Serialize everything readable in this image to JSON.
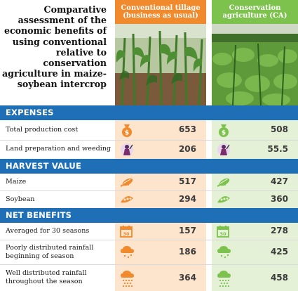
{
  "title": "Comparative assessment of the economic benefits of using conventional relative to conservation agriculture in maize-soybean intercrop",
  "columns": {
    "conventional": {
      "label": "Conventional tillage (business as usual)",
      "color": "#f08a2c"
    },
    "conservation": {
      "label": "Conservation agriculture (CA)",
      "color": "#7cc24c"
    }
  },
  "sections": {
    "expenses": {
      "title": "EXPENSES",
      "rows": [
        {
          "label": "Total production cost",
          "icon": "money-bag-icon",
          "conventional": "653",
          "conservation": "508"
        },
        {
          "label": "Land preparation and weeding",
          "icon": "farmer-icon",
          "conventional": "206",
          "conservation": "55.5"
        }
      ]
    },
    "harvest": {
      "title": "HARVEST VALUE",
      "rows": [
        {
          "label": "Maize",
          "icon": "maize-cob-icon",
          "conventional": "517",
          "conservation": "427"
        },
        {
          "label": "Soybean",
          "icon": "soybean-pod-icon",
          "conventional": "294",
          "conservation": "360"
        }
      ]
    },
    "net": {
      "title": "NET BENEFITS",
      "rows": [
        {
          "label": "Averaged for 30 seasons",
          "icon": "calendar-icon",
          "conventional": "157",
          "conservation": "278"
        },
        {
          "label": "Poorly distributed rainfall beginning of season",
          "icon": "rain-cloud-light-icon",
          "conventional": "186",
          "conservation": "425"
        },
        {
          "label": "Well distributed rainfall throughout the season",
          "icon": "rain-cloud-heavy-icon",
          "conventional": "364",
          "conservation": "458"
        }
      ]
    }
  }
}
